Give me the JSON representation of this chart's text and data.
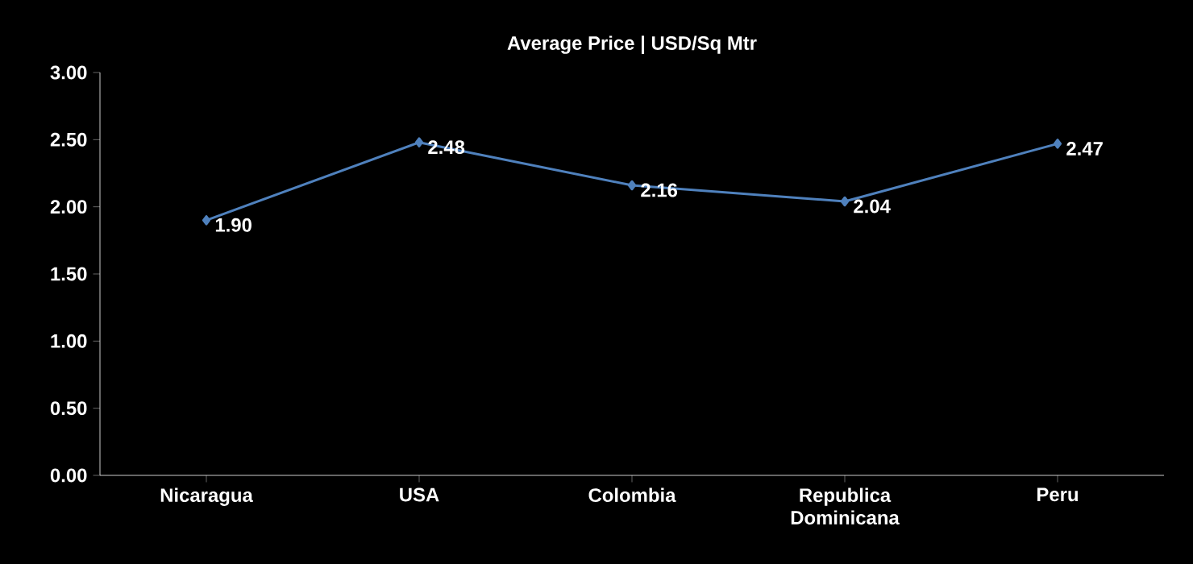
{
  "chart_data": {
    "type": "line",
    "title": "Average Price | USD/Sq Mtr",
    "categories": [
      "Nicaragua",
      "USA",
      "Colombia",
      "Republica Dominicana",
      "Peru"
    ],
    "values": [
      1.9,
      2.48,
      2.16,
      2.04,
      2.47
    ],
    "value_labels": [
      "1.90",
      "2.48",
      "2.16",
      "2.04",
      "2.47"
    ],
    "color": "#4f81bd",
    "marker": "diamond",
    "line_style": "solid",
    "grid": false,
    "ylim": [
      0,
      3
    ],
    "yticks": [
      {
        "value": 0,
        "label": "0.00"
      },
      {
        "value": 0.5,
        "label": "0.50"
      },
      {
        "value": 1,
        "label": "1.00"
      },
      {
        "value": 1.5,
        "label": "1.50"
      },
      {
        "value": 2,
        "label": "2.00"
      },
      {
        "value": 2.5,
        "label": "2.50"
      },
      {
        "value": 3,
        "label": "3.00"
      }
    ]
  }
}
